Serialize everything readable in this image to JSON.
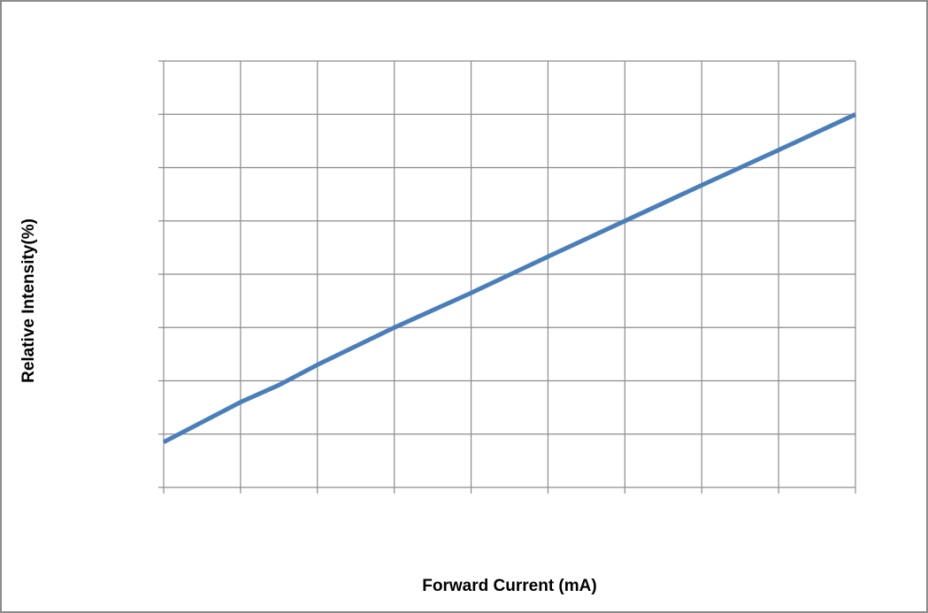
{
  "chart_data": {
    "type": "line",
    "title": "",
    "xlabel": "Forward Current (mA)",
    "ylabel": "Relative Intensity(%)",
    "x_tick_labels": [],
    "y_tick_labels": [],
    "xlim": [
      0,
      9
    ],
    "ylim": [
      0,
      8
    ],
    "grid": true,
    "legend": "none",
    "series": [
      {
        "color": "#4a7ebb",
        "x": [
          0,
          1,
          1.5,
          2,
          3,
          4,
          5,
          6,
          7,
          8,
          9
        ],
        "y": [
          0.85,
          1.6,
          1.92,
          2.3,
          3.0,
          3.65,
          4.33,
          5.0,
          5.67,
          6.33,
          7.0
        ]
      }
    ]
  },
  "colors": {
    "grid": "#8c8c8c",
    "frame": "#8c8c8c",
    "line": "#4a7ebb"
  }
}
